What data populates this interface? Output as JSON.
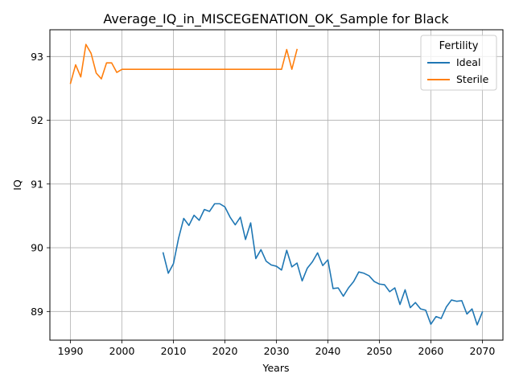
{
  "chart_data": {
    "type": "line",
    "title": "Average_IQ_in_MISCEGENATION_OK_Sample for Black",
    "xlabel": "Years",
    "ylabel": "IQ",
    "xlim": [
      1986,
      2074
    ],
    "ylim": [
      88.55,
      93.42
    ],
    "xticks": [
      1990,
      2000,
      2010,
      2020,
      2030,
      2040,
      2050,
      2060,
      2070
    ],
    "yticks": [
      89,
      90,
      91,
      92,
      93
    ],
    "grid": true,
    "legend": {
      "title": "Fertility",
      "placement": "top-right"
    },
    "series": [
      {
        "name": "Ideal",
        "color": "#1f77b4",
        "x": [
          2008,
          2009,
          2010,
          2011,
          2012,
          2013,
          2014,
          2015,
          2016,
          2017,
          2018,
          2019,
          2020,
          2021,
          2022,
          2023,
          2024,
          2025,
          2026,
          2027,
          2028,
          2029,
          2030,
          2031,
          2032,
          2033,
          2034,
          2035,
          2036,
          2037,
          2038,
          2039,
          2040,
          2041,
          2042,
          2043,
          2044,
          2045,
          2046,
          2047,
          2048,
          2049,
          2050,
          2051,
          2052,
          2053,
          2054,
          2055,
          2056,
          2057,
          2058,
          2059,
          2060,
          2061,
          2062,
          2063,
          2064,
          2065,
          2066,
          2067,
          2068,
          2069,
          2070
        ],
        "y": [
          89.92,
          89.6,
          89.75,
          90.15,
          90.46,
          90.35,
          90.51,
          90.43,
          90.6,
          90.57,
          90.69,
          90.69,
          90.64,
          90.48,
          90.36,
          90.48,
          90.13,
          90.39,
          89.83,
          89.97,
          89.79,
          89.73,
          89.71,
          89.65,
          89.96,
          89.7,
          89.76,
          89.48,
          89.68,
          89.78,
          89.92,
          89.72,
          89.81,
          89.36,
          89.37,
          89.24,
          89.37,
          89.47,
          89.62,
          89.6,
          89.56,
          89.47,
          89.43,
          89.42,
          89.31,
          89.37,
          89.11,
          89.34,
          89.06,
          89.14,
          89.04,
          89.02,
          88.8,
          88.92,
          88.89,
          89.07,
          89.18,
          89.16,
          89.17,
          88.96,
          89.04,
          88.79,
          88.99
        ]
      },
      {
        "name": "Sterile",
        "color": "#ff7f0e",
        "x": [
          1990,
          1991,
          1992,
          1993,
          1994,
          1995,
          1996,
          1997,
          1998,
          1999,
          2000,
          2001,
          2002,
          2003,
          2004,
          2005,
          2006,
          2007,
          2008,
          2009,
          2010,
          2011,
          2012,
          2013,
          2014,
          2015,
          2016,
          2017,
          2018,
          2019,
          2020,
          2021,
          2022,
          2023,
          2024,
          2025,
          2026,
          2027,
          2028,
          2029,
          2030,
          2031,
          2032,
          2033,
          2034
        ],
        "y": [
          92.58,
          92.87,
          92.68,
          93.19,
          93.05,
          92.74,
          92.65,
          92.9,
          92.9,
          92.75,
          92.8,
          92.8,
          92.8,
          92.8,
          92.8,
          92.8,
          92.8,
          92.8,
          92.8,
          92.8,
          92.8,
          92.8,
          92.8,
          92.8,
          92.8,
          92.8,
          92.8,
          92.8,
          92.8,
          92.8,
          92.8,
          92.8,
          92.8,
          92.8,
          92.8,
          92.8,
          92.8,
          92.8,
          92.8,
          92.8,
          92.8,
          92.8,
          93.11,
          92.8,
          93.11
        ]
      }
    ]
  }
}
